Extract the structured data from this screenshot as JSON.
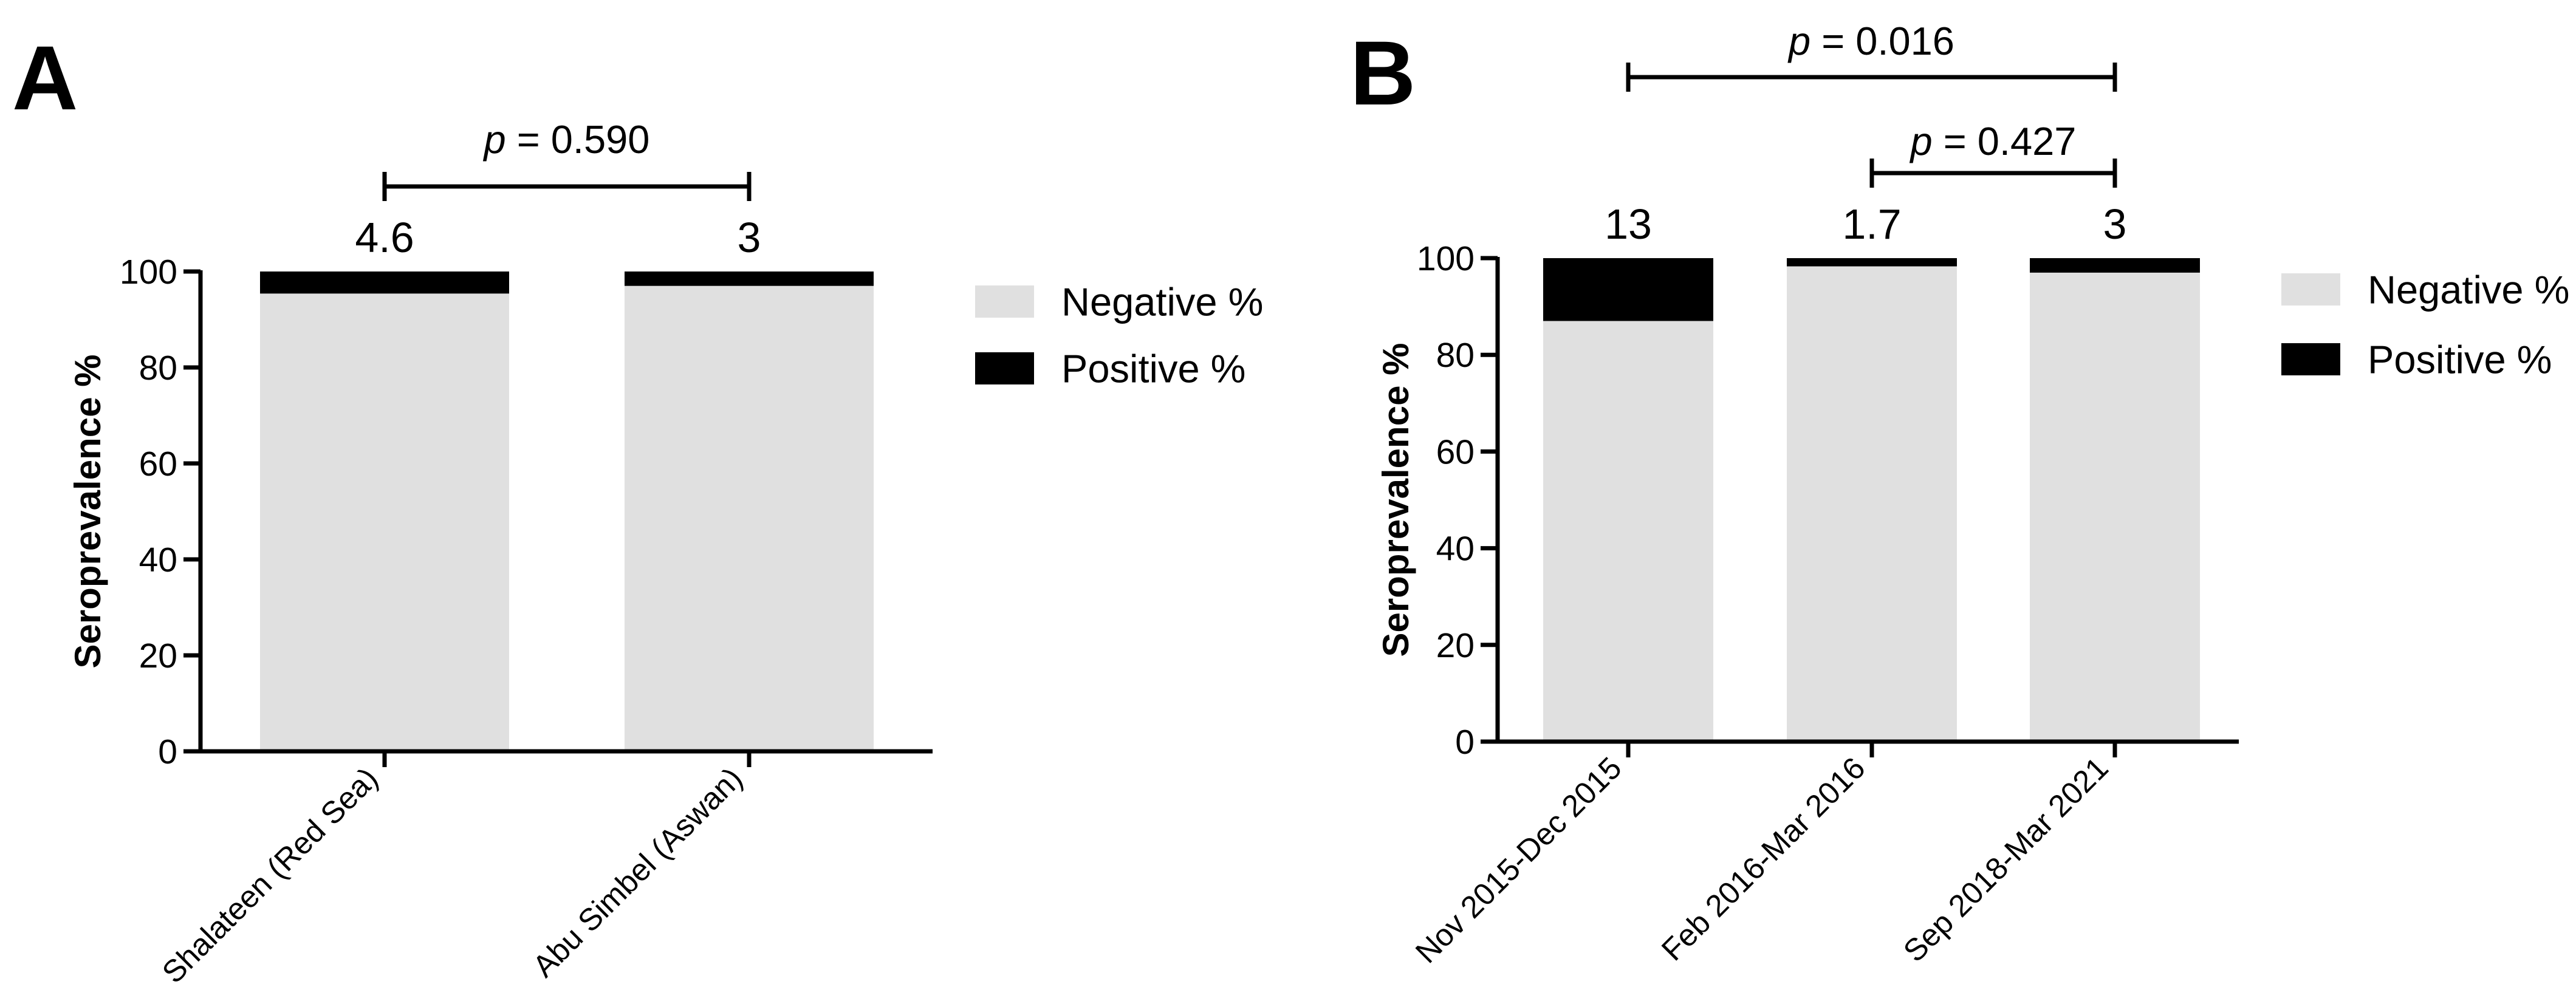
{
  "chart_data": [
    {
      "panel": "A",
      "type": "bar",
      "stacked": true,
      "ylabel": "Seroprevalence %",
      "ylim": [
        0,
        100
      ],
      "yticks": [
        0,
        20,
        40,
        60,
        80,
        100
      ],
      "categories": [
        "Shalateen (Red Sea)",
        "Abu Simbel (Aswan)"
      ],
      "series": [
        {
          "name": "Negative %",
          "color": "#e0e0e0",
          "values": [
            95.4,
            97.0
          ]
        },
        {
          "name": "Positive %",
          "color": "#000000",
          "values": [
            4.6,
            3.0
          ]
        }
      ],
      "bar_labels": [
        "4.6",
        "3"
      ],
      "comparisons": [
        {
          "from": 0,
          "to": 1,
          "p_symbol": "p",
          "p_value": " = 0.590"
        }
      ],
      "legend": {
        "position": "right",
        "entries": [
          "Negative %",
          "Positive %"
        ]
      }
    },
    {
      "panel": "B",
      "type": "bar",
      "stacked": true,
      "ylabel": "Seroprevalence %",
      "ylim": [
        0,
        100
      ],
      "yticks": [
        0,
        20,
        40,
        60,
        80,
        100
      ],
      "categories": [
        "Nov 2015-Dec 2015",
        "Feb 2016-Mar 2016",
        "Sep 2018-Mar 2021"
      ],
      "series": [
        {
          "name": "Negative %",
          "color": "#e0e0e0",
          "values": [
            87.0,
            98.3,
            97.0
          ]
        },
        {
          "name": "Positive %",
          "color": "#000000",
          "values": [
            13.0,
            1.7,
            3.0
          ]
        }
      ],
      "bar_labels": [
        "13",
        "1.7",
        "3"
      ],
      "comparisons": [
        {
          "from": 0,
          "to": 2,
          "p_symbol": "p",
          "p_value": " = 0.016"
        },
        {
          "from": 1,
          "to": 2,
          "p_symbol": "p",
          "p_value": " = 0.427"
        }
      ],
      "legend": {
        "position": "right",
        "entries": [
          "Negative %",
          "Positive %"
        ]
      }
    }
  ]
}
